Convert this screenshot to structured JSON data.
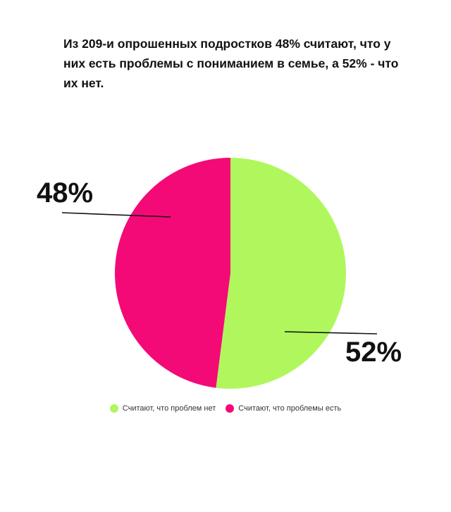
{
  "chart_data": {
    "type": "pie",
    "title": "Из 209-и опрошенных подростков 48% считают, что у них есть проблемы с пониманием в семье, а 52% - что их нет.",
    "slices": [
      {
        "name": "Считают, что проблем нет",
        "value": 52,
        "label": "52%",
        "color": "#b0f75d"
      },
      {
        "name": "Считают, что проблемы есть",
        "value": 48,
        "label": "48%",
        "color": "#f40a77"
      }
    ],
    "legend": "bottom"
  }
}
